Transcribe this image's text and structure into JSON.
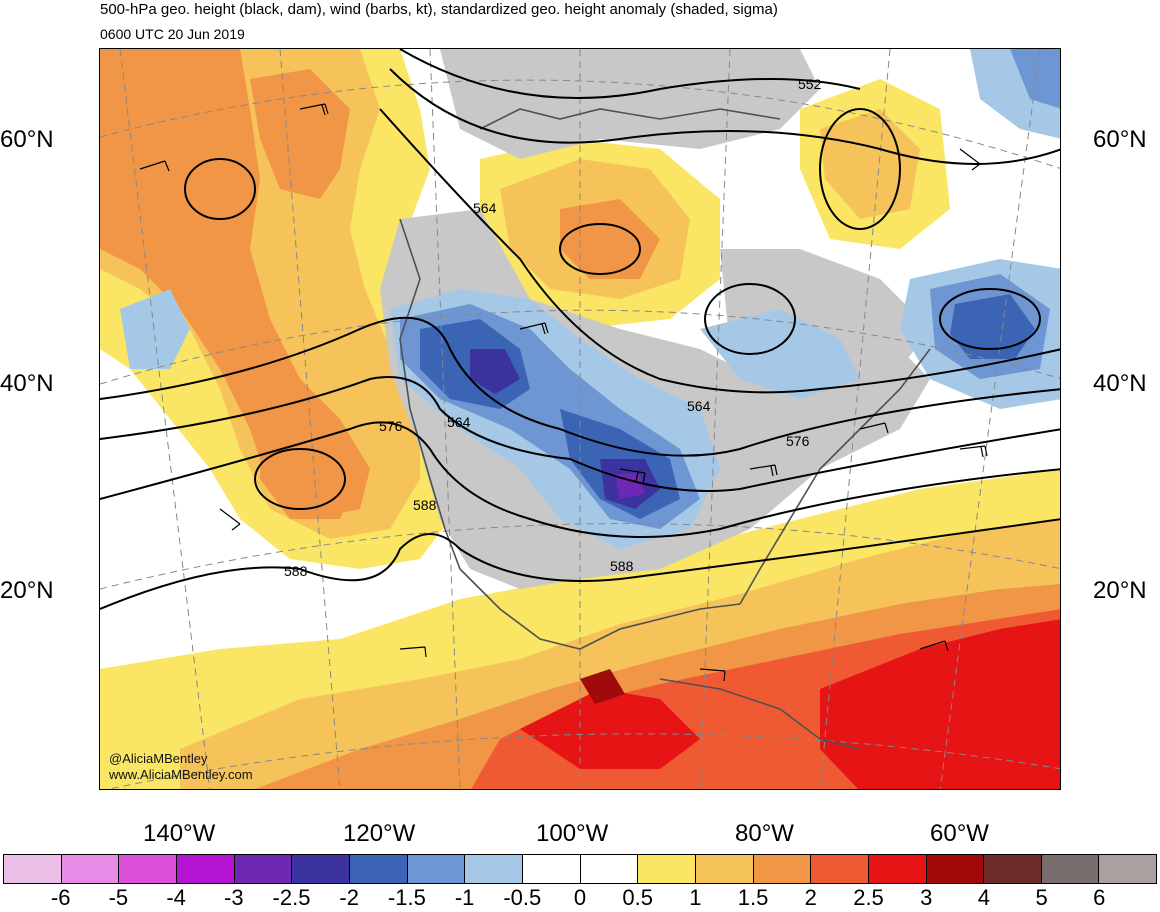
{
  "header": {
    "title": "500-hPa geo. height (black, dam), wind (barbs, kt), standardized geo. height anomaly (shaded, sigma)",
    "valid_time": "0600 UTC 20 Jun 2019"
  },
  "map": {
    "projection": "conic",
    "region": "North America / North Pacific / North Atlantic",
    "latitude_labels": {
      "left": [
        "60°N",
        "40°N",
        "20°N"
      ],
      "right": [
        "60°N",
        "40°N",
        "20°N"
      ]
    },
    "longitude_labels": [
      "140°W",
      "120°W",
      "100°W",
      "80°W",
      "60°W"
    ],
    "contour_labels": [
      "552",
      "564",
      "564",
      "564",
      "576",
      "576",
      "588",
      "588",
      "588"
    ],
    "credits": [
      "@AliciaMBentley",
      "www.AliciaMBentley.com"
    ],
    "colors": {
      "land_gray": "#c8c8c8",
      "ocean": "#ffffff",
      "contour": "#000000",
      "coastline": "#505050"
    }
  },
  "colorbar": {
    "colors": [
      "#ebbee6",
      "#e68ce6",
      "#dc50dc",
      "#b414d2",
      "#6e28b4",
      "#3c32a0",
      "#3c64b4",
      "#6e96d2",
      "#a5c8e6",
      "#ffffff",
      "#ffffff",
      "#fae664",
      "#f5c35a",
      "#f09646",
      "#f05a32",
      "#e61414",
      "#a00a0a",
      "#6e2d28",
      "#786e6e",
      "#aaa0a0"
    ],
    "labels": [
      "-6",
      "-5",
      "-4",
      "-3",
      "-2.5",
      "-2",
      "-1.5",
      "-1",
      "-0.5",
      "0",
      "0.5",
      "1",
      "1.5",
      "2",
      "2.5",
      "3",
      "4",
      "5",
      "6"
    ]
  }
}
